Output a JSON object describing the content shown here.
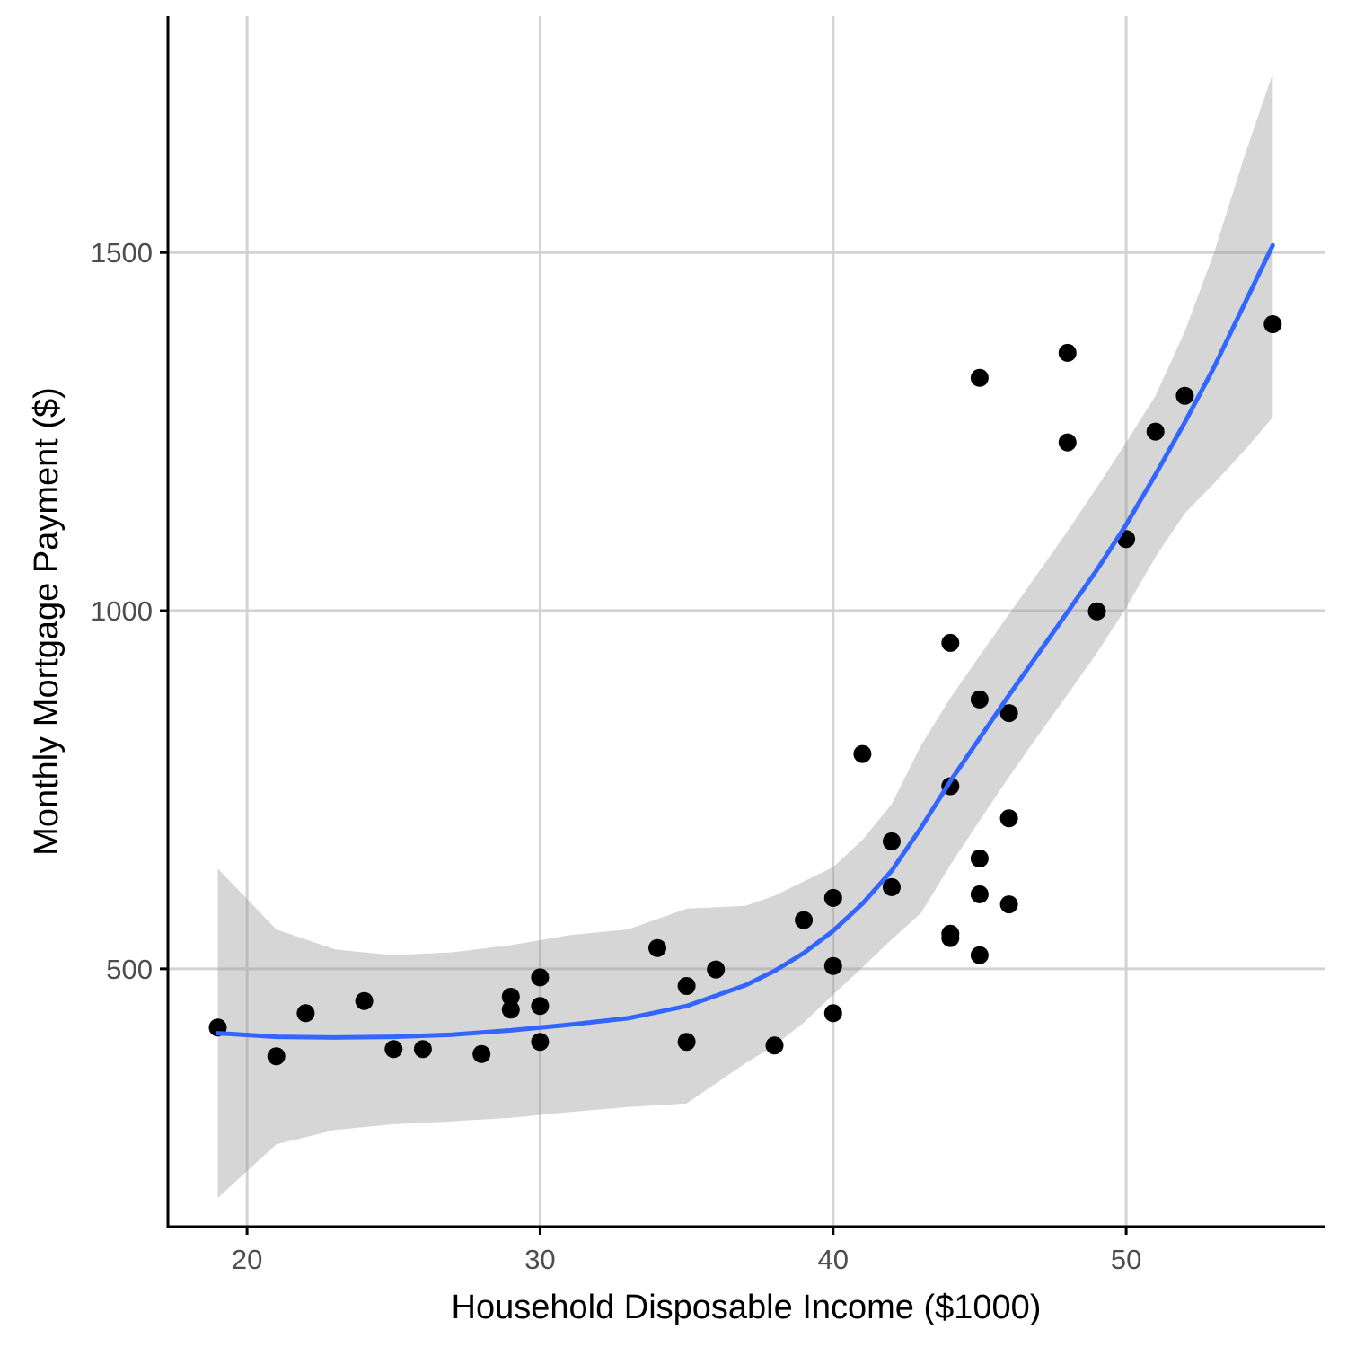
{
  "chart_data": {
    "type": "scatter",
    "title": "",
    "xlabel": "Household Disposable Income ($1000)",
    "ylabel": "Monthly Mortgage Payment ($)",
    "xlim": [
      17.3,
      56.8
    ],
    "ylim": [
      140,
      1830
    ],
    "x_ticks": [
      20,
      30,
      40,
      50
    ],
    "y_ticks": [
      500,
      1000,
      1500
    ],
    "x_tick_labels": [
      "20",
      "30",
      "40",
      "50"
    ],
    "y_tick_labels": [
      "500",
      "1000",
      "1500"
    ],
    "grid": true,
    "legend": "none",
    "colors": {
      "points": "#000000",
      "smooth_line": "#3366ff",
      "ribbon": "#999999",
      "grid": "#d3d3d3"
    },
    "points": [
      {
        "x": 19,
        "y": 418
      },
      {
        "x": 21,
        "y": 378
      },
      {
        "x": 22,
        "y": 438
      },
      {
        "x": 24,
        "y": 455
      },
      {
        "x": 25,
        "y": 388
      },
      {
        "x": 26,
        "y": 388
      },
      {
        "x": 28,
        "y": 381
      },
      {
        "x": 29,
        "y": 461
      },
      {
        "x": 29,
        "y": 443
      },
      {
        "x": 30,
        "y": 488
      },
      {
        "x": 30,
        "y": 448
      },
      {
        "x": 30,
        "y": 398
      },
      {
        "x": 34,
        "y": 529
      },
      {
        "x": 35,
        "y": 476
      },
      {
        "x": 35,
        "y": 398
      },
      {
        "x": 36,
        "y": 499
      },
      {
        "x": 38,
        "y": 393
      },
      {
        "x": 39,
        "y": 568
      },
      {
        "x": 40,
        "y": 599
      },
      {
        "x": 40,
        "y": 504
      },
      {
        "x": 40,
        "y": 438
      },
      {
        "x": 41,
        "y": 800
      },
      {
        "x": 42,
        "y": 678
      },
      {
        "x": 42,
        "y": 614
      },
      {
        "x": 44,
        "y": 955
      },
      {
        "x": 44,
        "y": 755
      },
      {
        "x": 44,
        "y": 549
      },
      {
        "x": 44,
        "y": 543
      },
      {
        "x": 45,
        "y": 1325
      },
      {
        "x": 45,
        "y": 876
      },
      {
        "x": 45,
        "y": 654
      },
      {
        "x": 45,
        "y": 604
      },
      {
        "x": 45,
        "y": 519
      },
      {
        "x": 46,
        "y": 857
      },
      {
        "x": 46,
        "y": 710
      },
      {
        "x": 46,
        "y": 590
      },
      {
        "x": 48,
        "y": 1360
      },
      {
        "x": 48,
        "y": 1235
      },
      {
        "x": 49,
        "y": 999
      },
      {
        "x": 50,
        "y": 1100
      },
      {
        "x": 51,
        "y": 1250
      },
      {
        "x": 52,
        "y": 1300
      },
      {
        "x": 55,
        "y": 1400
      }
    ],
    "smooth_fit": {
      "x": [
        19,
        21,
        23,
        25,
        27,
        29,
        31,
        33,
        35,
        37,
        38,
        39,
        40,
        41,
        42,
        43,
        44,
        45,
        46,
        47,
        48,
        49,
        50,
        51,
        52,
        53,
        54,
        55
      ],
      "y": [
        410,
        405,
        404,
        405,
        408,
        414,
        422,
        431,
        448,
        477,
        497,
        522,
        553,
        591,
        637,
        697,
        762,
        822,
        882,
        940,
        998,
        1057,
        1120,
        1190,
        1263,
        1340,
        1425,
        1510
      ],
      "lower": [
        180,
        255,
        275,
        283,
        287,
        292,
        300,
        307,
        312,
        368,
        393,
        425,
        464,
        502,
        541,
        578,
        645,
        707,
        768,
        826,
        883,
        941,
        1004,
        1075,
        1136,
        1178,
        1222,
        1270
      ],
      "upper": [
        640,
        555,
        527,
        519,
        523,
        533,
        547,
        555,
        584,
        588,
        602,
        622,
        642,
        680,
        730,
        812,
        878,
        937,
        995,
        1053,
        1111,
        1172,
        1235,
        1300,
        1390,
        1500,
        1630,
        1750
      ]
    }
  }
}
